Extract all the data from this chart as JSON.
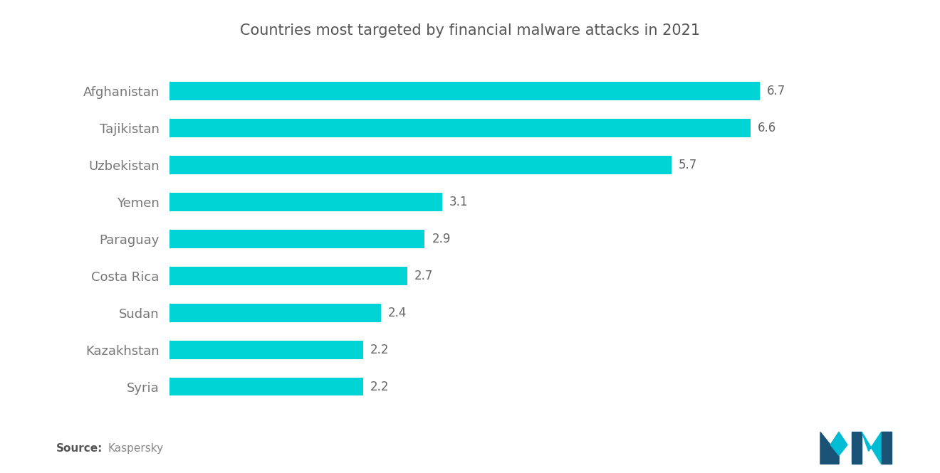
{
  "title": "Countries most targeted by financial malware attacks in 2021",
  "countries": [
    "Syria",
    "Kazakhstan",
    "Sudan",
    "Costa Rica",
    "Paraguay",
    "Yemen",
    "Uzbekistan",
    "Tajikistan",
    "Afghanistan"
  ],
  "values": [
    2.2,
    2.2,
    2.4,
    2.7,
    2.9,
    3.1,
    5.7,
    6.6,
    6.7
  ],
  "bar_color": "#00D4D4",
  "label_color": "#777777",
  "value_color": "#666666",
  "title_color": "#555555",
  "background_color": "#ffffff",
  "source_bold": "Source:",
  "source_normal": "Kaspersky",
  "xlim": [
    0,
    8.0
  ],
  "bar_height": 0.5,
  "title_fontsize": 15,
  "label_fontsize": 13,
  "value_fontsize": 12,
  "source_fontsize": 11
}
